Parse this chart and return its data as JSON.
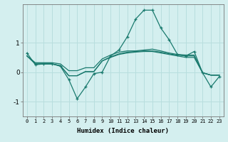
{
  "xlabel": "Humidex (Indice chaleur)",
  "background_color": "#d4efef",
  "grid_color": "#b8dede",
  "line_color": "#1a7a6e",
  "x_ticks": [
    0,
    1,
    2,
    3,
    4,
    5,
    6,
    7,
    8,
    9,
    10,
    11,
    12,
    13,
    14,
    15,
    16,
    17,
    18,
    19,
    20,
    21,
    22,
    23
  ],
  "ylim": [
    -1.5,
    2.3
  ],
  "yticks": [
    -1,
    0,
    1
  ],
  "lines": [
    {
      "x": [
        0,
        1,
        2,
        3,
        4,
        5,
        6,
        7,
        8,
        9,
        10,
        11,
        12,
        13,
        14,
        15,
        16,
        17,
        18,
        19,
        20,
        21,
        22,
        23
      ],
      "y": [
        0.65,
        0.25,
        0.28,
        0.28,
        0.2,
        -0.25,
        -0.9,
        -0.5,
        -0.05,
        0.0,
        0.55,
        0.75,
        1.2,
        1.8,
        2.1,
        2.1,
        1.5,
        1.1,
        0.6,
        0.55,
        0.7,
        -0.02,
        -0.5,
        -0.15
      ],
      "marker": true
    },
    {
      "x": [
        0,
        1,
        2,
        3,
        4,
        5,
        6,
        7,
        8,
        9,
        10,
        11,
        12,
        13,
        14,
        15,
        16,
        17,
        18,
        19,
        20,
        21,
        22,
        23
      ],
      "y": [
        0.55,
        0.28,
        0.28,
        0.28,
        0.22,
        -0.12,
        -0.12,
        0.02,
        0.02,
        0.38,
        0.52,
        0.62,
        0.68,
        0.7,
        0.72,
        0.72,
        0.68,
        0.62,
        0.58,
        0.55,
        0.55,
        -0.02,
        -0.1,
        -0.1
      ],
      "marker": false
    },
    {
      "x": [
        0,
        1,
        2,
        3,
        4,
        5,
        6,
        7,
        8,
        9,
        10,
        11,
        12,
        13,
        14,
        15,
        16,
        17,
        18,
        19,
        20,
        21,
        22,
        23
      ],
      "y": [
        0.55,
        0.28,
        0.28,
        0.28,
        0.22,
        -0.12,
        -0.12,
        0.02,
        0.02,
        0.38,
        0.5,
        0.6,
        0.65,
        0.68,
        0.7,
        0.7,
        0.65,
        0.6,
        0.55,
        0.5,
        0.5,
        -0.02,
        -0.1,
        -0.1
      ],
      "marker": false
    },
    {
      "x": [
        0,
        1,
        2,
        3,
        4,
        5,
        6,
        7,
        8,
        9,
        10,
        11,
        12,
        13,
        14,
        15,
        16,
        17,
        18,
        19,
        20,
        21,
        22,
        23
      ],
      "y": [
        0.55,
        0.32,
        0.32,
        0.32,
        0.28,
        0.05,
        0.05,
        0.15,
        0.15,
        0.45,
        0.58,
        0.68,
        0.72,
        0.72,
        0.75,
        0.78,
        0.72,
        0.65,
        0.6,
        0.58,
        0.58,
        -0.02,
        -0.1,
        -0.1
      ],
      "marker": false
    }
  ]
}
